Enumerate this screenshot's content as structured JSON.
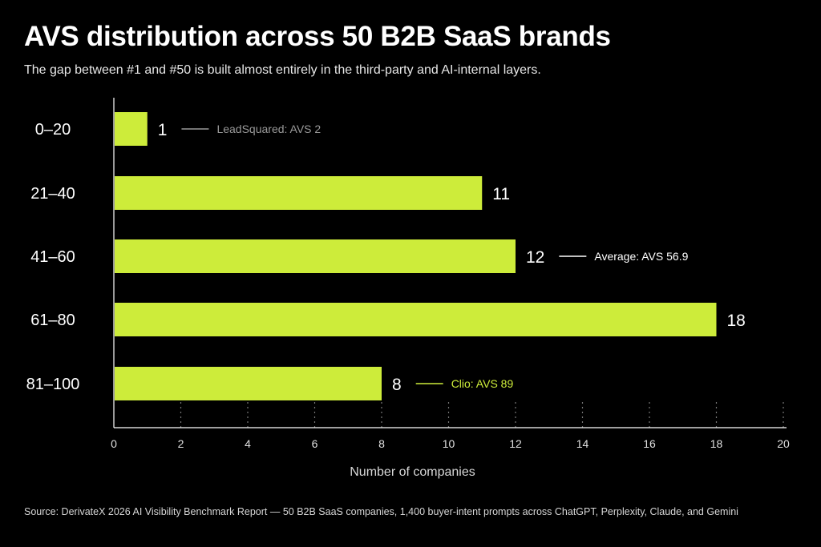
{
  "title": "AVS distribution across 50 B2B SaaS brands",
  "subtitle": "The gap between #1 and #50 is built almost entirely in the third-party and AI-internal layers.",
  "source": "Source:  DerivateX 2026 AI Visibility Benchmark Report — 50 B2B SaaS companies, 1,400 buyer-intent prompts across ChatGPT, Perplexity, Claude, and Gemini",
  "colors": {
    "background": "#000000",
    "bar": "#cdec3a",
    "text": "#ffffff",
    "muted": "#9a9a9a",
    "grid": "#777777"
  },
  "chart_data": {
    "type": "bar",
    "orientation": "horizontal",
    "categories": [
      "0–20",
      "21–40",
      "41–60",
      "61–80",
      "81–100"
    ],
    "values": [
      1,
      11,
      12,
      18,
      8
    ],
    "xlabel": "Number of companies",
    "ylabel": "",
    "xlim": [
      0,
      20
    ],
    "xticks": [
      0,
      2,
      4,
      6,
      8,
      10,
      12,
      14,
      16,
      18,
      20
    ],
    "grid": "dotted vertical at x ticks",
    "annotations": [
      {
        "category": "0–20",
        "text": "LeadSquared: AVS 2",
        "style": "muted"
      },
      {
        "category": "41–60",
        "text": "Average: AVS 56.9",
        "style": "white"
      },
      {
        "category": "81–100",
        "text": "Clio: AVS 89",
        "style": "accent"
      }
    ]
  }
}
